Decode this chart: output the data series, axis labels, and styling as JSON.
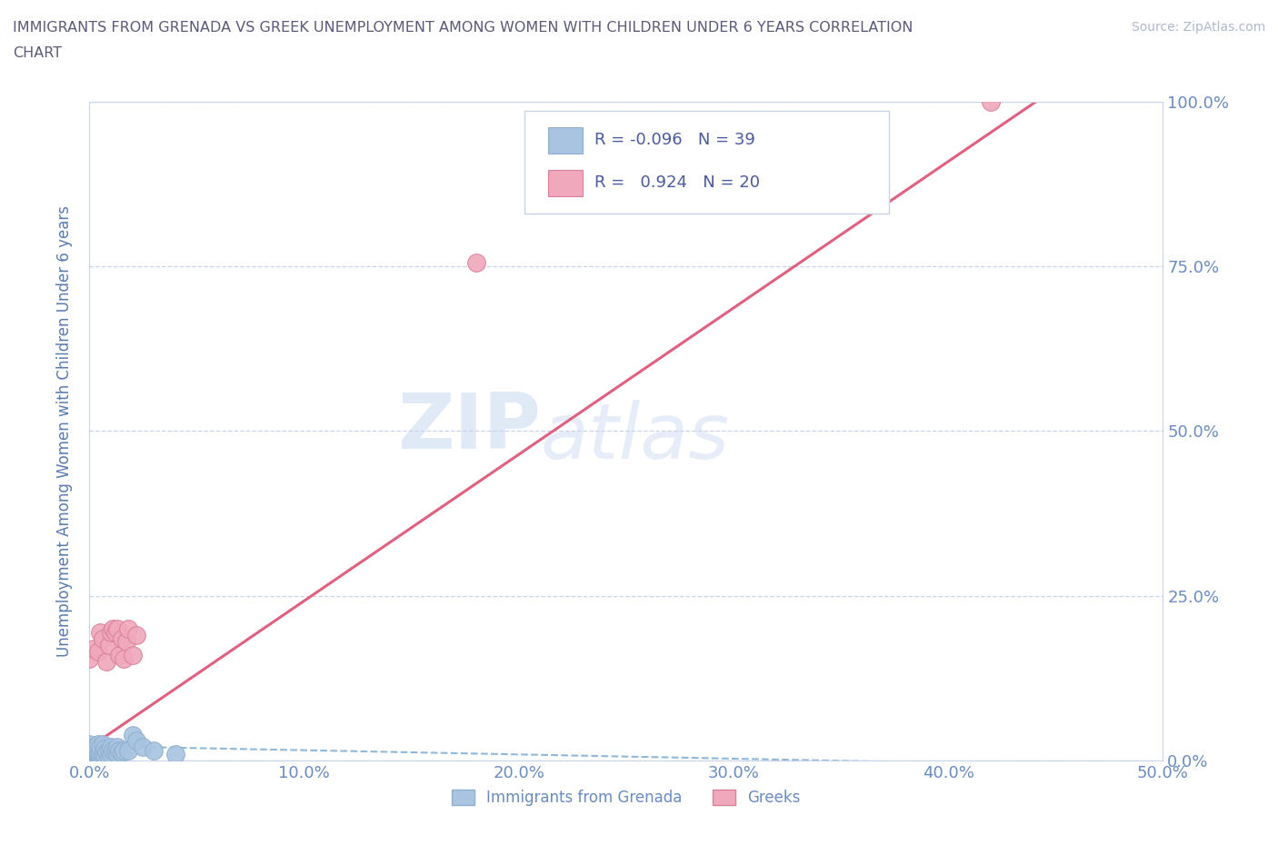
{
  "title_line1": "IMMIGRANTS FROM GRENADA VS GREEK UNEMPLOYMENT AMONG WOMEN WITH CHILDREN UNDER 6 YEARS CORRELATION",
  "title_line2": "CHART",
  "source": "Source: ZipAtlas.com",
  "ylabel": "Unemployment Among Women with Children Under 6 years",
  "xlim": [
    0,
    0.5
  ],
  "ylim": [
    0,
    1.0
  ],
  "xticks": [
    0.0,
    0.1,
    0.2,
    0.3,
    0.4,
    0.5
  ],
  "xtick_labels": [
    "0.0%",
    "10.0%",
    "20.0%",
    "30.0%",
    "40.0%",
    "50.0%"
  ],
  "yticks": [
    0.0,
    0.25,
    0.5,
    0.75,
    1.0
  ],
  "ytick_labels": [
    "0.0%",
    "25.0%",
    "50.0%",
    "75.0%",
    "100.0%"
  ],
  "watermark_zip": "ZIP",
  "watermark_atlas": "atlas",
  "grenada_color": "#a8c4e0",
  "grenada_edge": "#90afd0",
  "greek_color": "#f0a8bc",
  "greek_edge": "#d88098",
  "title_color": "#5a5a7a",
  "axis_label_color": "#5a7ab0",
  "tick_color": "#6a8cc0",
  "grid_color": "#c8d4e8",
  "source_color": "#b0b8cc",
  "legend_r1": "R = -0.096",
  "legend_n1": "N = 39",
  "legend_r2": "R =  0.924",
  "legend_n2": "N = 20",
  "grenada_scatter_x": [
    0.0,
    0.0,
    0.0,
    0.001,
    0.001,
    0.002,
    0.002,
    0.003,
    0.003,
    0.003,
    0.004,
    0.004,
    0.004,
    0.005,
    0.005,
    0.005,
    0.005,
    0.006,
    0.006,
    0.007,
    0.007,
    0.008,
    0.009,
    0.009,
    0.01,
    0.01,
    0.011,
    0.012,
    0.013,
    0.013,
    0.014,
    0.015,
    0.016,
    0.018,
    0.02,
    0.022,
    0.025,
    0.03,
    0.04
  ],
  "grenada_scatter_y": [
    0.005,
    0.015,
    0.025,
    0.005,
    0.015,
    0.01,
    0.02,
    0.005,
    0.01,
    0.02,
    0.005,
    0.01,
    0.025,
    0.003,
    0.008,
    0.013,
    0.02,
    0.01,
    0.025,
    0.008,
    0.018,
    0.012,
    0.005,
    0.015,
    0.01,
    0.02,
    0.015,
    0.015,
    0.01,
    0.02,
    0.015,
    0.012,
    0.015,
    0.015,
    0.038,
    0.03,
    0.02,
    0.015,
    0.01
  ],
  "greek_scatter_x": [
    0.0,
    0.002,
    0.004,
    0.005,
    0.006,
    0.008,
    0.009,
    0.01,
    0.011,
    0.012,
    0.013,
    0.014,
    0.015,
    0.016,
    0.017,
    0.018,
    0.02,
    0.022,
    0.18,
    0.42
  ],
  "greek_scatter_y": [
    0.155,
    0.17,
    0.165,
    0.195,
    0.185,
    0.15,
    0.175,
    0.195,
    0.2,
    0.195,
    0.2,
    0.16,
    0.185,
    0.155,
    0.18,
    0.2,
    0.16,
    0.19,
    0.755,
    1.0
  ],
  "grenada_trend_x": [
    0.0,
    0.5
  ],
  "grenada_trend_y": [
    0.022,
    -0.01
  ],
  "greek_trend_x": [
    0.0,
    0.45
  ],
  "greek_trend_y": [
    0.02,
    1.02
  ],
  "background_color": "#ffffff"
}
